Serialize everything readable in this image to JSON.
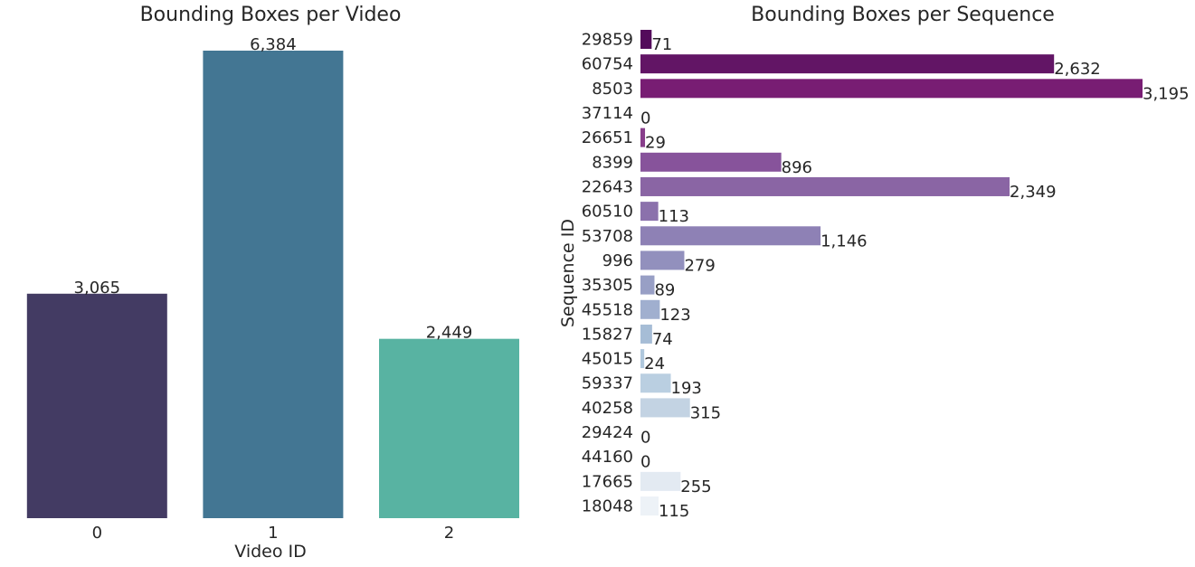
{
  "chart_data": [
    {
      "type": "bar",
      "orientation": "vertical",
      "title": "Bounding Boxes per Video",
      "xlabel": "Video ID",
      "ylabel": "",
      "categories": [
        "0",
        "1",
        "2"
      ],
      "values": [
        3065,
        6384,
        2449
      ],
      "value_labels": [
        "3,065",
        "6,384",
        "2,449"
      ],
      "colors": [
        "#433b63",
        "#437693",
        "#58b3a2"
      ],
      "ylim": [
        0,
        6384
      ],
      "grid": false,
      "legend": "none"
    },
    {
      "type": "bar",
      "orientation": "horizontal",
      "title": "Bounding Boxes per Sequence",
      "xlabel": "",
      "ylabel": "Sequence ID",
      "categories": [
        "29859",
        "60754",
        "8503",
        "37114",
        "26651",
        "8399",
        "22643",
        "60510",
        "53708",
        "996",
        "35305",
        "45518",
        "15827",
        "45015",
        "59337",
        "40258",
        "29424",
        "44160",
        "17665",
        "18048"
      ],
      "values": [
        71,
        2632,
        3195,
        0,
        29,
        896,
        2349,
        113,
        1146,
        279,
        89,
        123,
        74,
        24,
        193,
        315,
        0,
        0,
        255,
        115
      ],
      "value_labels": [
        "71",
        "2,632",
        "3,195",
        "0",
        "29",
        "896",
        "2,349",
        "113",
        "1,146",
        "279",
        "89",
        "123",
        "74",
        "24",
        "193",
        "315",
        "0",
        "0",
        "255",
        "115"
      ],
      "colors": [
        "#530b5b",
        "#621565",
        "#781d73",
        "#82327f",
        "#883e8b",
        "#87539b",
        "#8a65a4",
        "#8b71ac",
        "#8e81b5",
        "#9290bd",
        "#989fc5",
        "#a0afcf",
        "#a6bdd6",
        "#b0c8dd",
        "#bacfe1",
        "#c3d3e3",
        "#cddbe8",
        "#d9e3ee",
        "#e3eaf2",
        "#edf2f7"
      ],
      "xlim": [
        0,
        3195
      ],
      "grid": false,
      "legend": "none"
    }
  ]
}
